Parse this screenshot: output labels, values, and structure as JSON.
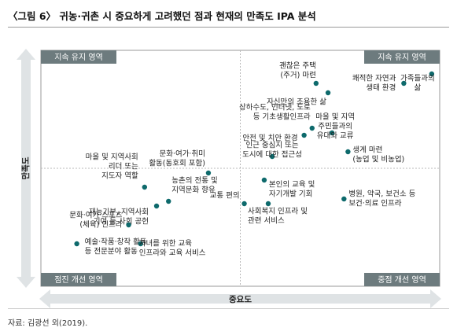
{
  "title": "〈그림 6〉 귀농·귀촌 시 중요하게 고려했던 점과 현재의 만족도 IPA 분석",
  "source": "자료: 김광선 외(2019).",
  "colors": {
    "dot": "#0e6a6c",
    "quadrant_box": "#6d7b7e",
    "axis_arrow": "#dfe3e5",
    "grid_dash": "#b8b8b8",
    "plot_border": "#999999"
  },
  "chart_data": {
    "type": "scatter",
    "title": "〈그림 6〉 귀농·귀촌 시 중요하게 고려했던 점과 현재의 만족도 IPA 분석",
    "xlabel": "중요도",
    "ylabel": "만족도",
    "xlim": [
      0,
      100
    ],
    "ylim": [
      0,
      100
    ],
    "crosshair": [
      50,
      50
    ],
    "grid": false,
    "quadrants": {
      "top_left": "지속 유지 영역",
      "top_right": "지속 유지 영역",
      "bottom_left": "점진 개선 영역",
      "bottom_right": "중점 개선 영역"
    },
    "points": [
      {
        "label": [
          "괜찮은 주택",
          "(주거) 마련"
        ],
        "x": 69,
        "y": 86
      },
      {
        "label": [
          "자신만의 조용한 삶"
        ],
        "x": 72,
        "y": 82
      },
      {
        "label": [
          "쾌적한 자연과",
          "생태 환경"
        ],
        "x": 91,
        "y": 86
      },
      {
        "label": [
          "가족들과의",
          "삶"
        ],
        "x": 98,
        "y": 90
      },
      {
        "label": [
          "상하수도, 인터넷, 도로",
          "등 기초생활인프라"
        ],
        "x": 68,
        "y": 67
      },
      {
        "label": [
          "마을 및 지역",
          "주민들과의",
          "유대와 교류"
        ],
        "x": 73,
        "y": 65
      },
      {
        "label": [
          "안전 및 치안 환경"
        ],
        "x": 66,
        "y": 64
      },
      {
        "label": [
          "인근 중심지 또는",
          "도시에 대한 접근성"
        ],
        "x": 58,
        "y": 55
      },
      {
        "label": [
          "생계 마련",
          "(농업 및 비농업)"
        ],
        "x": 77,
        "y": 57
      },
      {
        "label": [
          "문화·여가·취미",
          "활동(동호회 포함)"
        ],
        "x": 42,
        "y": 48
      },
      {
        "label": [
          "본인의 교육 및",
          "자기개발 기회"
        ],
        "x": 56,
        "y": 45
      },
      {
        "label": [
          "마을 및 지역사회",
          "리더 또는",
          "지도자 역할"
        ],
        "x": 26,
        "y": 42
      },
      {
        "label": [
          "농촌의 전통 및",
          "지역문화 향유"
        ],
        "x": 32,
        "y": 36
      },
      {
        "label": [
          "교통 편의"
        ],
        "x": 51,
        "y": 35
      },
      {
        "label": [
          "병원, 약국, 보건소 등",
          "보건·의료 인프라"
        ],
        "x": 76,
        "y": 37
      },
      {
        "label": [
          "재능기부, 지역사회",
          "기여 등 사회 공헌"
        ],
        "x": 29,
        "y": 34
      },
      {
        "label": [
          "사회복지 인프라 및",
          "관련 서비스"
        ],
        "x": 57,
        "y": 35
      },
      {
        "label": [
          "문화·여가·스포츠",
          "(체육) 인프라"
        ],
        "x": 22,
        "y": 26
      },
      {
        "label": [
          "예술·작품·창작 활동",
          "등 전문분야 활동"
        ],
        "x": 9,
        "y": 18
      },
      {
        "label": [
          "자녀를 위한 교육",
          "인프라와 교육 서비스"
        ],
        "x": 25,
        "y": 18
      }
    ]
  }
}
